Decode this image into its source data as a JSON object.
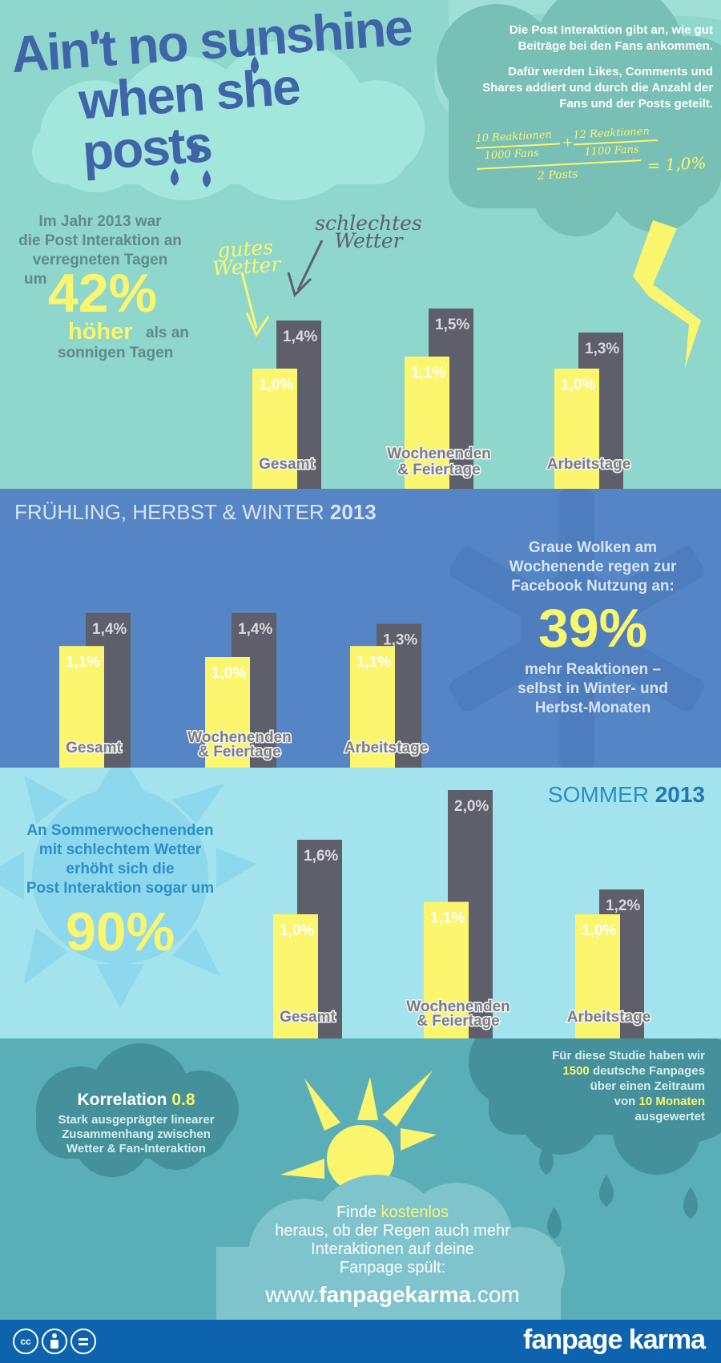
{
  "colors": {
    "good": "#fcf56e",
    "bad": "#5e5f6b",
    "teal_bg": "#8fd6cc",
    "blue_bg": "#5585c4",
    "sky_bg": "#a3e3ed",
    "deep_teal": "#5aaeb8",
    "title_blue": "#3f64a8",
    "footer": "#0d63ad"
  },
  "header": {
    "title_line1": "Ain't no sunshine",
    "title_line2": "when she posts",
    "intro_p1": "Die Post Interaktion gibt an, wie gut Beiträge bei den Fans ankommen.",
    "intro_p2": "Dafür werden Likes, Comments und Shares addiert und durch die Anzahl der Fans und der Posts geteilt.",
    "formula": {
      "num1": "10 Reaktionen",
      "den1": "1000 Fans",
      "plus": "+",
      "num2": "12 Reaktionen",
      "den2": "1100 Fans",
      "posts": "2 Posts",
      "result": "= 1,0%"
    }
  },
  "section1": {
    "text_l1": "Im Jahr 2013 war",
    "text_l2": "die Post Interaktion an",
    "text_l3": "verregneten Tagen",
    "text_um": "um",
    "big": "42%",
    "hoher": "höher",
    "als": "als an",
    "sonnigen": "sonnigen Tagen",
    "label_good": "gutes Wetter",
    "label_bad": "schlechtes Wetter"
  },
  "section2": {
    "heading_normal": "FRÜHLING, HERBST & WINTER",
    "heading_bold": "2013",
    "text_l1": "Graue Wolken am",
    "text_l2": "Wochenende regen zur",
    "text_l3": "Facebook Nutzung an:",
    "big": "39%",
    "text_l4": "mehr Reaktionen –",
    "text_l5": "selbst in Winter- und",
    "text_l6": "Herbst-Monaten"
  },
  "section3": {
    "heading_normal": "SOMMER",
    "heading_bold": "2013",
    "text_l1": "An Sommerwochenenden",
    "text_l2": "mit schlechtem Wetter",
    "text_l3": "erhöht sich die",
    "text_l4": "Post Interaktion sogar um",
    "big": "90%"
  },
  "section4": {
    "korrelation_label": "Korrelation",
    "korrelation_value": "0.8",
    "korr_l1": "Stark ausgeprägter linearer",
    "korr_l2": "Zusammenhang zwischen",
    "korr_l3": "Wetter & Fan-Interaktion",
    "study_l1": "Für diese Studie haben wir",
    "study_num": "1500",
    "study_l2": "deutsche Fanpages",
    "study_l3": "über einen Zeitraum",
    "study_von": "von",
    "study_months": "10 Monaten",
    "study_l4": "ausgewertet",
    "cta_finde": "Finde",
    "cta_free": "kostenlos",
    "cta_l2": "heraus, ob der Regen auch mehr",
    "cta_l3": "Interaktionen auf deine",
    "cta_l4": "Fanpage spült:",
    "url_www": "www.",
    "url_name": "fanpagekarma",
    "url_tld": ".com"
  },
  "footer": {
    "brand": "fanpage karma",
    "cc": "cc"
  },
  "chart_data": [
    {
      "type": "bar",
      "title": "2013",
      "categories": [
        "Gesamt",
        "Wochenenden & Feiertage",
        "Arbeitstage"
      ],
      "series": [
        {
          "name": "gutes Wetter",
          "values": [
            1.0,
            1.1,
            1.0
          ],
          "labels": [
            "1,0%",
            "1,1%",
            "1,0%"
          ]
        },
        {
          "name": "schlechtes Wetter",
          "values": [
            1.4,
            1.5,
            1.3
          ],
          "labels": [
            "1,4%",
            "1,5%",
            "1,3%"
          ]
        }
      ]
    },
    {
      "type": "bar",
      "title": "FRÜHLING, HERBST & WINTER 2013",
      "categories": [
        "Gesamt",
        "Wochenenden & Feiertage",
        "Arbeitstage"
      ],
      "series": [
        {
          "name": "gutes Wetter",
          "values": [
            1.1,
            1.0,
            1.1
          ],
          "labels": [
            "1,1%",
            "1,0%",
            "1,1%"
          ]
        },
        {
          "name": "schlechtes Wetter",
          "values": [
            1.4,
            1.4,
            1.3
          ],
          "labels": [
            "1,4%",
            "1,4%",
            "1,3%"
          ]
        }
      ]
    },
    {
      "type": "bar",
      "title": "SOMMER 2013",
      "categories": [
        "Gesamt",
        "Wochenenden & Feiertage",
        "Arbeitstage"
      ],
      "series": [
        {
          "name": "gutes Wetter",
          "values": [
            1.0,
            1.1,
            1.0
          ],
          "labels": [
            "1,0%",
            "1,1%",
            "1,0%"
          ]
        },
        {
          "name": "schlechtes Wetter",
          "values": [
            1.6,
            2.0,
            1.2
          ],
          "labels": [
            "1,6%",
            "2,0%",
            "1,2%"
          ]
        }
      ]
    }
  ]
}
